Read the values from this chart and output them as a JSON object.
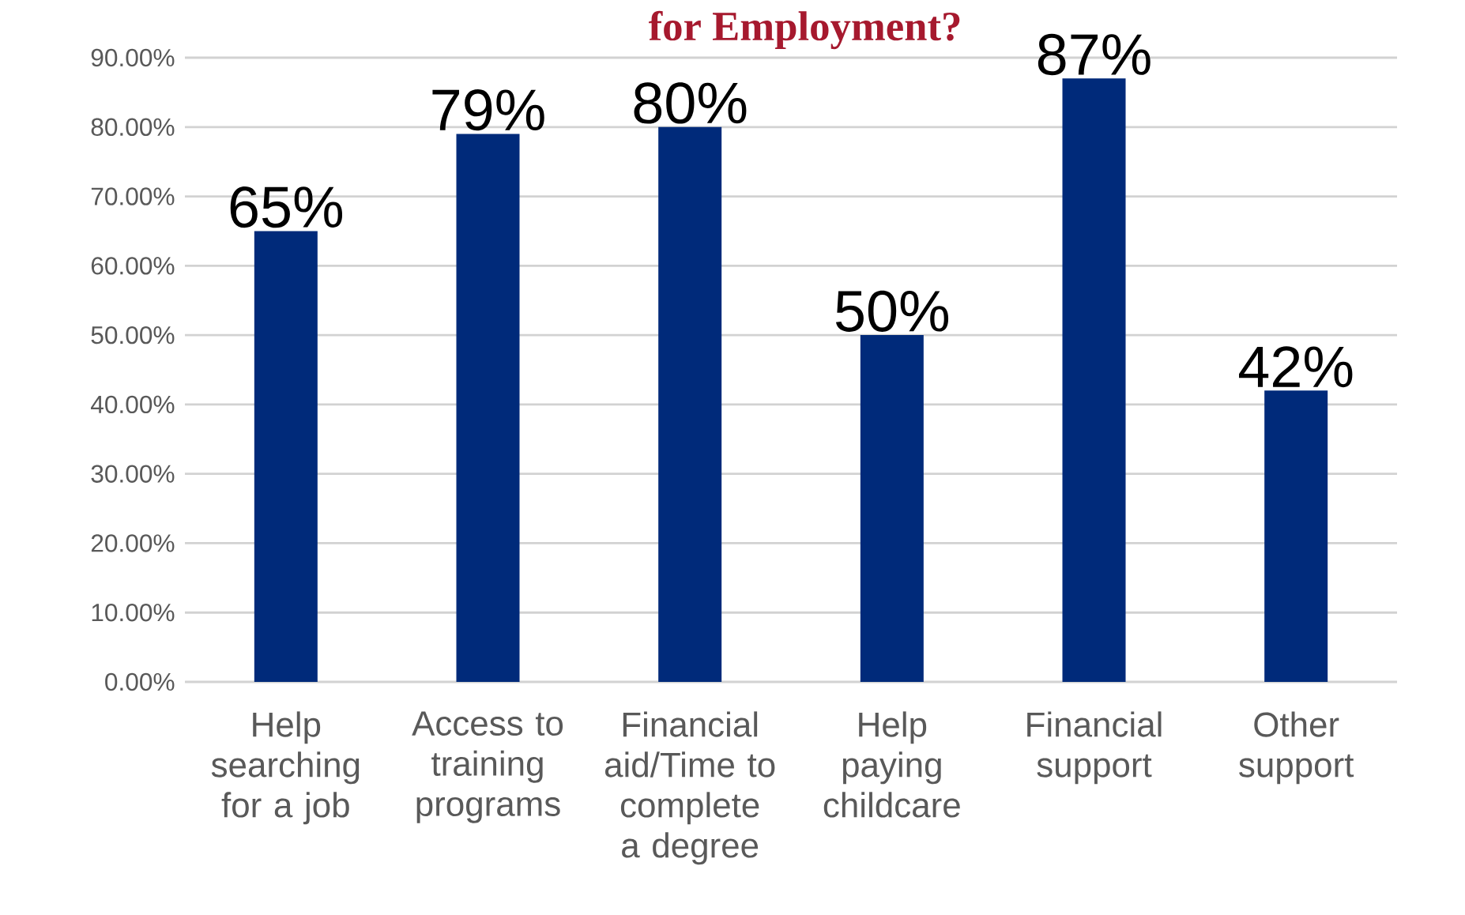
{
  "chart_data": {
    "type": "bar",
    "title": "for Employment?",
    "categories": [
      "Help searching for a job",
      "Access to training programs",
      "Financial aid/Time to complete a degree",
      "Help paying childcare",
      "Financial support",
      "Other support"
    ],
    "values": [
      65,
      79,
      80,
      50,
      87,
      42
    ],
    "value_labels": [
      "65%",
      "79%",
      "80%",
      "50%",
      "87%",
      "42%"
    ],
    "color": "#002a7a",
    "ylim": [
      0,
      90
    ],
    "yticks": [
      {
        "value": 0,
        "label": "0.00%"
      },
      {
        "value": 10,
        "label": "10.00%"
      },
      {
        "value": 20,
        "label": "20.00%"
      },
      {
        "value": 30,
        "label": "30.00%"
      },
      {
        "value": 40,
        "label": "40.00%"
      },
      {
        "value": 50,
        "label": "50.00%"
      },
      {
        "value": 60,
        "label": "60.00%"
      },
      {
        "value": 70,
        "label": "70.00%"
      },
      {
        "value": 80,
        "label": "80.00%"
      },
      {
        "value": 90,
        "label": "90.00%"
      }
    ],
    "grid": "y"
  }
}
